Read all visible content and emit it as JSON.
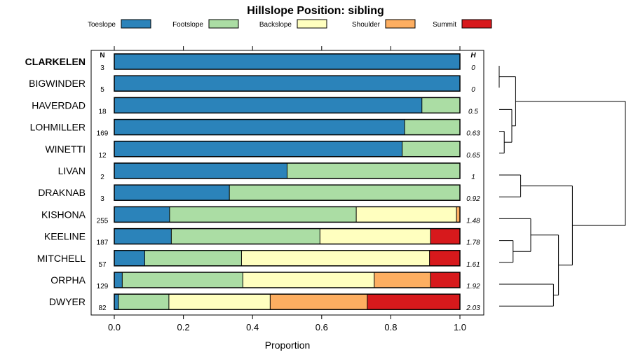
{
  "chart_data": {
    "type": "bar",
    "orientation": "horizontal-stacked",
    "title": "Hillslope Position: sibling",
    "xlabel": "Proportion",
    "xlim": [
      0,
      1
    ],
    "xticks": [
      "0.0",
      "0.2",
      "0.4",
      "0.6",
      "0.8",
      "1.0"
    ],
    "n_header": "N",
    "h_header": "H",
    "legend": [
      {
        "name": "Toeslope",
        "color": "#2B83BA"
      },
      {
        "name": "Footslope",
        "color": "#ABDDA4"
      },
      {
        "name": "Backslope",
        "color": "#FFFFBF"
      },
      {
        "name": "Shoulder",
        "color": "#FDAE61"
      },
      {
        "name": "Summit",
        "color": "#D7191C"
      }
    ],
    "rows": [
      {
        "name": "CLARKELEN",
        "bold": true,
        "n": "3",
        "h": "0",
        "values": [
          1.0,
          0,
          0,
          0,
          0
        ]
      },
      {
        "name": "BIGWINDER",
        "bold": false,
        "n": "5",
        "h": "0",
        "values": [
          1.0,
          0,
          0,
          0,
          0
        ]
      },
      {
        "name": "HAVERDAD",
        "bold": false,
        "n": "18",
        "h": "0.5",
        "values": [
          0.89,
          0.11,
          0,
          0,
          0
        ]
      },
      {
        "name": "LOHMILLER",
        "bold": false,
        "n": "169",
        "h": "0.63",
        "values": [
          0.84,
          0.16,
          0,
          0,
          0
        ]
      },
      {
        "name": "WINETTI",
        "bold": false,
        "n": "12",
        "h": "0.65",
        "values": [
          0.833,
          0.167,
          0,
          0,
          0
        ]
      },
      {
        "name": "LIVAN",
        "bold": false,
        "n": "2",
        "h": "1",
        "values": [
          0.5,
          0.5,
          0,
          0,
          0
        ]
      },
      {
        "name": "DRAKNAB",
        "bold": false,
        "n": "3",
        "h": "0.92",
        "values": [
          0.333,
          0.667,
          0,
          0,
          0
        ]
      },
      {
        "name": "KISHONA",
        "bold": false,
        "n": "255",
        "h": "1.48",
        "values": [
          0.16,
          0.54,
          0.29,
          0.01,
          0
        ]
      },
      {
        "name": "KEELINE",
        "bold": false,
        "n": "187",
        "h": "1.78",
        "values": [
          0.165,
          0.43,
          0.32,
          0,
          0.085
        ]
      },
      {
        "name": "MITCHELL",
        "bold": false,
        "n": "57",
        "h": "1.61",
        "values": [
          0.088,
          0.28,
          0.544,
          0,
          0.088
        ]
      },
      {
        "name": "ORPHA",
        "bold": false,
        "n": "129",
        "h": "1.92",
        "values": [
          0.023,
          0.349,
          0.38,
          0.163,
          0.085
        ]
      },
      {
        "name": "DWYER",
        "bold": false,
        "n": "82",
        "h": "2.03",
        "values": [
          0.012,
          0.146,
          0.293,
          0.281,
          0.268
        ]
      }
    ],
    "dendrogram_merges": [
      [
        1,
        2,
        0.0
      ],
      [
        4,
        5,
        0.04
      ],
      [
        3,
        -2,
        0.1
      ],
      [
        -1,
        -3,
        0.13
      ],
      [
        6,
        7,
        0.17
      ],
      [
        9,
        10,
        0.11
      ],
      [
        8,
        -6,
        0.25
      ],
      [
        11,
        12,
        0.43
      ],
      [
        -7,
        -8,
        0.47
      ],
      [
        -5,
        -9,
        0.58
      ],
      [
        -4,
        -10,
        1.0
      ]
    ]
  }
}
